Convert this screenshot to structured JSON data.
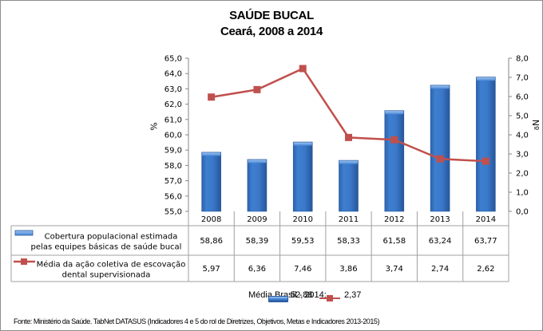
{
  "title": {
    "line1": "SAÚDE BUCAL",
    "line2": "Ceará, 2008 a 2014"
  },
  "axes": {
    "left": {
      "label": "%",
      "ticks": [
        "65,0",
        "64,0",
        "63,0",
        "62,0",
        "61,0",
        "60,0",
        "59,0",
        "58,0",
        "57,0",
        "56,0",
        "55,0"
      ]
    },
    "right": {
      "label": "Nº",
      "ticks": [
        "8,0",
        "7,0",
        "6,0",
        "5,0",
        "4,0",
        "3,0",
        "2,0",
        "1,0",
        "0,0"
      ]
    }
  },
  "table": {
    "years": [
      "2008",
      "2009",
      "2010",
      "2011",
      "2012",
      "2013",
      "2014"
    ],
    "rows": [
      {
        "label_line1": "Cobertura populacional estimada",
        "label_line2": "pelas equipes básicas de saúde bucal",
        "values": [
          "58,86",
          "58,39",
          "59,53",
          "58,33",
          "61,58",
          "63,24",
          "63,77"
        ]
      },
      {
        "label_line1": "Média da ação coletiva de escovação",
        "label_line2": "dental supervisionada",
        "values": [
          "5,97",
          "6,36",
          "7,46",
          "3,86",
          "3,74",
          "2,74",
          "2,62"
        ]
      }
    ]
  },
  "brazil_average": {
    "label": "Média Brasil - 2014:",
    "bar_value": "52,88",
    "line_value": "2,37"
  },
  "source": "Fonte: Ministério da Saúde. TabNet DATASUS (Indicadores 4 e 5 do rol de Diretrizes, Objetivos, Metas e Indicadores 2013-2015)",
  "colors": {
    "bar": "#3a78c9",
    "bar_dark": "#2a5a9e",
    "line": "#c0504d"
  },
  "chart_data": {
    "type": "bar+line",
    "title": "SAÚDE BUCAL — Ceará, 2008 a 2014",
    "categories": [
      "2008",
      "2009",
      "2010",
      "2011",
      "2012",
      "2013",
      "2014"
    ],
    "series": [
      {
        "name": "Cobertura populacional estimada pelas equipes básicas de saúde bucal",
        "type": "bar",
        "axis": "left",
        "values": [
          58.86,
          58.39,
          59.53,
          58.33,
          61.58,
          63.24,
          63.77
        ]
      },
      {
        "name": "Média da ação coletiva de escovação dental supervisionada",
        "type": "line",
        "axis": "right",
        "values": [
          5.97,
          6.36,
          7.46,
          3.86,
          3.74,
          2.74,
          2.62
        ]
      }
    ],
    "ylabel": "%",
    "ylim": [
      55,
      65
    ],
    "y2label": "Nº",
    "y2lim": [
      0,
      8
    ],
    "grid": false,
    "legend": "data table",
    "annotations": [
      "Média Brasil - 2014: 52,88 (bar), 2,37 (line)"
    ]
  }
}
